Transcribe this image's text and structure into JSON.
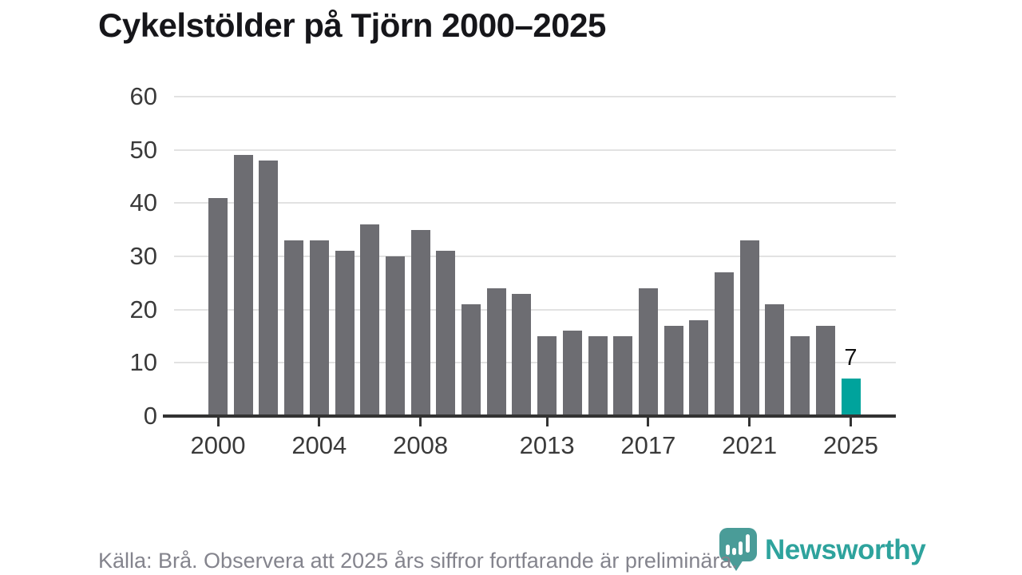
{
  "title": "Cykelstölder på Tjörn 2000–2025",
  "chart_data": {
    "type": "bar",
    "x": [
      2000,
      2001,
      2002,
      2003,
      2004,
      2005,
      2006,
      2007,
      2008,
      2009,
      2010,
      2011,
      2012,
      2013,
      2014,
      2015,
      2016,
      2017,
      2018,
      2019,
      2020,
      2021,
      2022,
      2023,
      2024,
      2025
    ],
    "values": [
      41,
      49,
      48,
      33,
      33,
      31,
      36,
      30,
      35,
      31,
      21,
      24,
      23,
      15,
      16,
      15,
      15,
      24,
      17,
      18,
      27,
      33,
      21,
      15,
      17,
      7
    ],
    "title": "Cykelstölder på Tjörn 2000–2025",
    "xlabel": "",
    "ylabel": "",
    "ylim": [
      0,
      60
    ],
    "y_ticks": [
      0,
      10,
      20,
      30,
      40,
      50,
      60
    ],
    "x_tick_labels": [
      "2000",
      "2004",
      "2008",
      "2013",
      "2017",
      "2021",
      "2025"
    ],
    "grid": "horizontal",
    "bar_color": "#6d6d72",
    "highlight_index": 25,
    "highlight_color": "#00a39c",
    "highlight_label": "7",
    "legend": "none"
  },
  "footer": {
    "source_note": "Källa: Brå. Observera att 2025 års siffror fortfarande är preliminära."
  },
  "branding": {
    "logo_text": "Newsworthy",
    "logo_icon": "newsworthy-bubble-chart-icon",
    "logo_icon_color": "#4a9c98",
    "logo_text_color": "#2ea39d"
  }
}
